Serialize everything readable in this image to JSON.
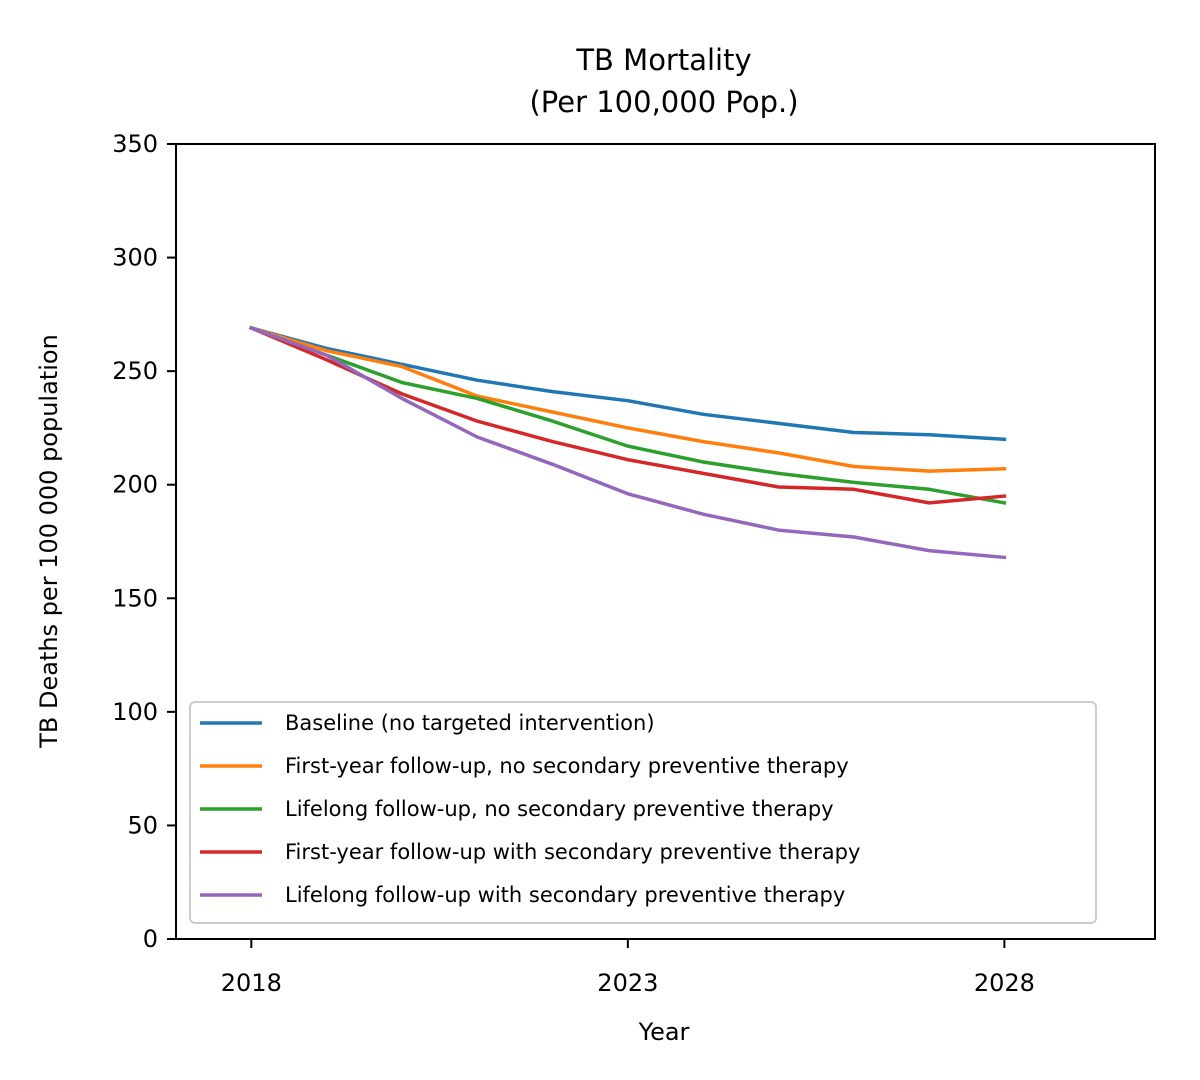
{
  "chart_data": {
    "type": "line",
    "title": "TB Mortality",
    "subtitle": "(Per 100,000 Pop.)",
    "xlabel": "Year",
    "ylabel": "TB Deaths per 100 000 population",
    "xlim": [
      2017,
      2030
    ],
    "ylim": [
      0,
      350
    ],
    "xticks": [
      "2018",
      "2023",
      "2028"
    ],
    "yticks": [
      "0",
      "50",
      "100",
      "150",
      "200",
      "250",
      "300",
      "350"
    ],
    "grid": false,
    "legend_position": "lower-left",
    "x": [
      2018,
      2019,
      2020,
      2021,
      2022,
      2023,
      2024,
      2025,
      2026,
      2027,
      2028
    ],
    "series": [
      {
        "name": "Baseline (no targeted intervention)",
        "color": "#1f77b4",
        "values": [
          269,
          260,
          253,
          246,
          241,
          237,
          231,
          227,
          223,
          222,
          220
        ]
      },
      {
        "name": "First-year follow-up, no secondary preventive therapy",
        "color": "#ff7f0e",
        "values": [
          269,
          259,
          252,
          239,
          232,
          225,
          219,
          214,
          208,
          206,
          207
        ]
      },
      {
        "name": "Lifelong follow-up, no secondary preventive therapy",
        "color": "#2ca02c",
        "values": [
          269,
          257,
          245,
          238,
          228,
          217,
          210,
          205,
          201,
          198,
          192
        ]
      },
      {
        "name": "First-year follow-up with secondary preventive therapy",
        "color": "#d62728",
        "values": [
          269,
          255,
          240,
          228,
          219,
          211,
          205,
          199,
          198,
          192,
          195
        ]
      },
      {
        "name": "Lifelong follow-up with secondary preventive therapy",
        "color": "#9467bd",
        "values": [
          269,
          257,
          238,
          221,
          209,
          196,
          187,
          180,
          177,
          171,
          168
        ]
      }
    ]
  }
}
